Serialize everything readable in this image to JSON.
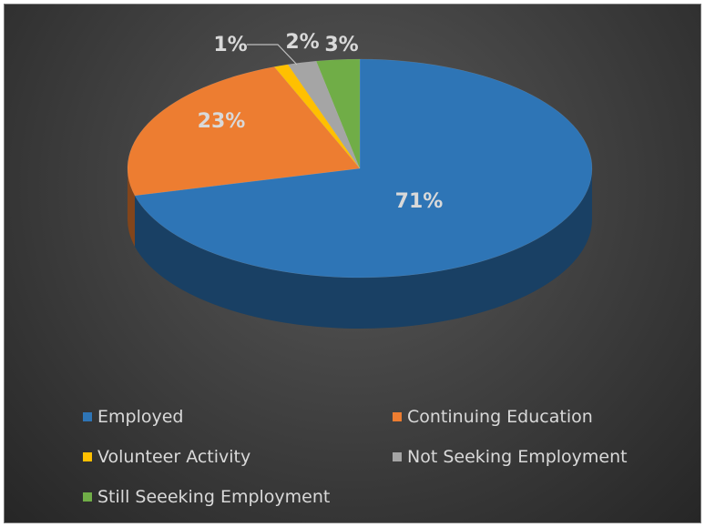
{
  "chart_data": {
    "type": "pie",
    "style": "3d",
    "title": "",
    "categories": [
      "Employed",
      "Continuing Education",
      "Volunteer Activity",
      "Not Seeking Employment",
      "Still Seeeking Employment"
    ],
    "values": [
      71,
      23,
      1,
      2,
      3
    ],
    "labels": [
      "71%",
      "23%",
      "1%",
      "2%",
      "3%"
    ],
    "colors": [
      "#2e75b6",
      "#ed7d31",
      "#ffc000",
      "#a5a5a5",
      "#70ad47"
    ],
    "legend": "bottom"
  }
}
